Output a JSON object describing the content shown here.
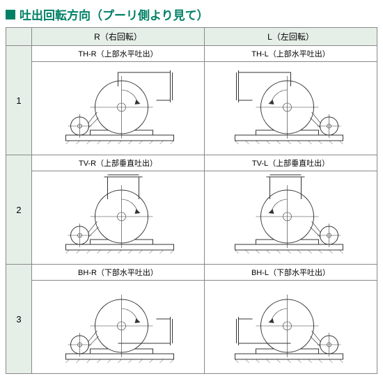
{
  "title": "吐出回転方向（プーリ側より見て）",
  "colR": "R（右回転）",
  "colL": "L（左回転）",
  "rows": [
    {
      "n": "1",
      "rLabel": "TH-R（上部水平吐出）",
      "lLabel": "TH-L（上部水平吐出）",
      "type": "TH"
    },
    {
      "n": "2",
      "rLabel": "TV-R（上部垂直吐出）",
      "lLabel": "TV-L（上部垂直吐出）",
      "type": "TV"
    },
    {
      "n": "3",
      "rLabel": "BH-R（下部水平吐出）",
      "lLabel": "BH-L（下部水平吐出）",
      "type": "BH"
    }
  ]
}
